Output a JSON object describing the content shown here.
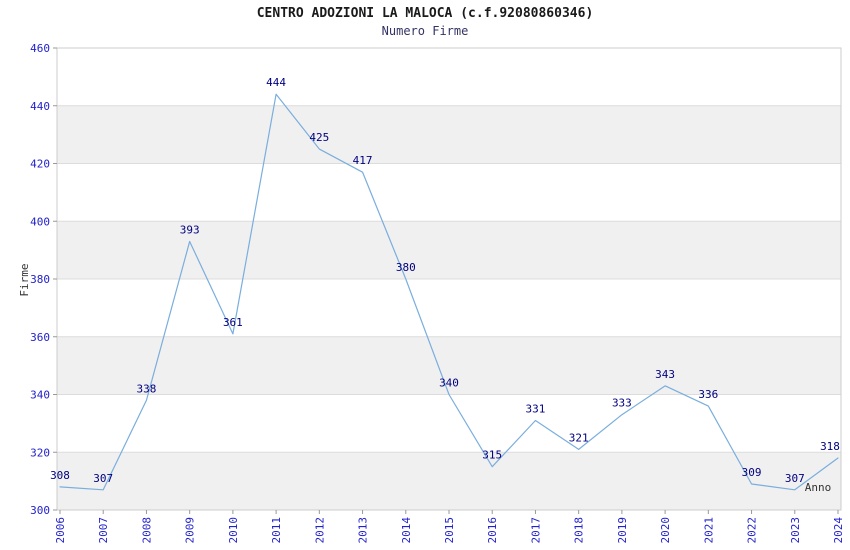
{
  "chart_data": {
    "type": "line",
    "title": "CENTRO ADOZIONI LA MALOCA (c.f.92080860346)",
    "subtitle": "Numero Firme",
    "xlabel": "Anno",
    "ylabel": "Firme",
    "categories": [
      "2006",
      "2007",
      "2008",
      "2009",
      "2010",
      "2011",
      "2012",
      "2013",
      "2014",
      "2015",
      "2016",
      "2017",
      "2018",
      "2019",
      "2020",
      "2021",
      "2022",
      "2023",
      "2024"
    ],
    "values": [
      308,
      307,
      338,
      393,
      361,
      444,
      425,
      417,
      380,
      340,
      315,
      331,
      321,
      333,
      343,
      336,
      309,
      307,
      318
    ],
    "ylim": [
      300,
      460
    ],
    "ytick_step": 20,
    "yticks": [
      300,
      320,
      340,
      360,
      380,
      400,
      420,
      440,
      460
    ],
    "grid": true,
    "legend": "none",
    "colors": {
      "line": "#7aaedd",
      "point_labels": "#000080",
      "tick_labels": "#2222cc",
      "band_gray": "#f0f0f0",
      "band_white": "#ffffff",
      "gridline": "#dcdcdc",
      "plot_border": "#cccccc",
      "title": "#1a1a1a",
      "subtitle": "#333366"
    }
  }
}
